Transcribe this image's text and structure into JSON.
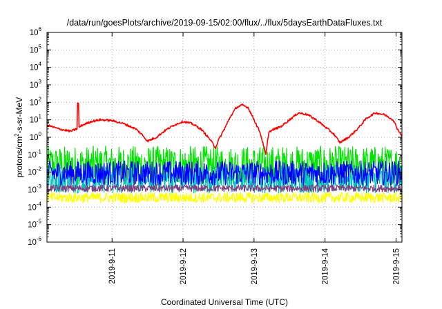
{
  "chart_data": {
    "type": "line",
    "title": "/data/run/goesPlots/archive/2019-09-15/02:00/flux/../flux/5daysEarthDataFluxes.txt",
    "xlabel": "Coordinated Universal Time (UTC)",
    "ylabel": {
      "before": "protons/cm",
      "sup": "2",
      "after": "-s-sr-MeV"
    },
    "y_scale": "log",
    "ylim": [
      1e-06,
      1000000.0
    ],
    "y_ticks": [
      {
        "base": "10",
        "exp": "-6",
        "value": 1e-06
      },
      {
        "base": "10",
        "exp": "-5",
        "value": 1e-05
      },
      {
        "base": "10",
        "exp": "-4",
        "value": 0.0001
      },
      {
        "base": "10",
        "exp": "-3",
        "value": 0.001
      },
      {
        "base": "10",
        "exp": "-2",
        "value": 0.01
      },
      {
        "base": "10",
        "exp": "-1",
        "value": 0.1
      },
      {
        "base": "10",
        "exp": "0",
        "value": 1
      },
      {
        "base": "10",
        "exp": "1",
        "value": 10
      },
      {
        "base": "10",
        "exp": "2",
        "value": 100
      },
      {
        "base": "10",
        "exp": "3",
        "value": 1000
      },
      {
        "base": "10",
        "exp": "4",
        "value": 10000
      },
      {
        "base": "10",
        "exp": "5",
        "value": 100000
      },
      {
        "base": "10",
        "exp": "6",
        "value": 1000000
      }
    ],
    "xlim": [
      "2019-09-10T02:00",
      "2019-09-15T02:00"
    ],
    "x_ticks": [
      {
        "label": "2019-9-11",
        "value": "2019-09-11T00:00"
      },
      {
        "label": "2019-9-12",
        "value": "2019-09-12T00:00"
      },
      {
        "label": "2019-9-13",
        "value": "2019-09-13T00:00"
      },
      {
        "label": "2019-9-14",
        "value": "2019-09-14T00:00"
      },
      {
        "label": "2019-9-15",
        "value": "2019-09-15T00:00"
      }
    ],
    "grid": true,
    "series": [
      {
        "color": "#ff0000",
        "style": "smooth",
        "noise": 0.06,
        "spikes": [
          [
            "2019-09-10T12:30",
            90
          ]
        ],
        "points": [
          [
            "2019-09-10T02:00",
            5
          ],
          [
            "2019-09-10T06:00",
            3
          ],
          [
            "2019-09-10T10:00",
            2.2
          ],
          [
            "2019-09-10T12:00",
            3
          ],
          [
            "2019-09-10T14:00",
            5
          ],
          [
            "2019-09-10T17:00",
            8
          ],
          [
            "2019-09-10T20:00",
            10
          ],
          [
            "2019-09-11T00:00",
            9
          ],
          [
            "2019-09-11T04:00",
            6
          ],
          [
            "2019-09-11T08:00",
            3
          ],
          [
            "2019-09-11T10:00",
            1.5
          ],
          [
            "2019-09-11T12:00",
            0.6
          ],
          [
            "2019-09-11T15:00",
            1
          ],
          [
            "2019-09-11T18:00",
            2.5
          ],
          [
            "2019-09-11T21:00",
            5
          ],
          [
            "2019-09-12T00:00",
            8
          ],
          [
            "2019-09-12T03:00",
            6
          ],
          [
            "2019-09-12T06:00",
            3
          ],
          [
            "2019-09-12T09:00",
            0.8
          ],
          [
            "2019-09-12T11:00",
            0.25
          ],
          [
            "2019-09-12T12:00",
            0.7
          ],
          [
            "2019-09-12T14:00",
            3
          ],
          [
            "2019-09-12T16:00",
            15
          ],
          [
            "2019-09-12T18:00",
            50
          ],
          [
            "2019-09-12T20:00",
            70
          ],
          [
            "2019-09-12T22:00",
            50
          ],
          [
            "2019-09-13T00:00",
            10
          ],
          [
            "2019-09-13T02:00",
            2
          ],
          [
            "2019-09-13T04:00",
            0.1
          ],
          [
            "2019-09-13T05:00",
            2
          ],
          [
            "2019-09-13T07:00",
            3
          ],
          [
            "2019-09-13T09:00",
            4
          ],
          [
            "2019-09-13T12:00",
            10
          ],
          [
            "2019-09-13T15:00",
            25
          ],
          [
            "2019-09-13T18:00",
            20
          ],
          [
            "2019-09-13T21:00",
            10
          ],
          [
            "2019-09-14T00:00",
            4
          ],
          [
            "2019-09-14T03:00",
            1.5
          ],
          [
            "2019-09-14T05:00",
            0.5
          ],
          [
            "2019-09-14T08:00",
            1
          ],
          [
            "2019-09-14T11:00",
            3
          ],
          [
            "2019-09-14T14:00",
            12
          ],
          [
            "2019-09-14T17:00",
            25
          ],
          [
            "2019-09-14T20:00",
            20
          ],
          [
            "2019-09-14T23:00",
            10
          ],
          [
            "2019-09-15T00:30",
            3
          ],
          [
            "2019-09-15T02:00",
            1.2
          ]
        ]
      },
      {
        "color": "#00e400",
        "style": "noisy",
        "level": 0.025,
        "spread": 2.2
      },
      {
        "color": "#00bfbf",
        "style": "noisy",
        "level": 0.004,
        "spread": 1.6
      },
      {
        "color": "#0000ff",
        "style": "noisy",
        "level": 0.009,
        "spread": 1.4
      },
      {
        "color": "#7f3f7f",
        "style": "noisy",
        "level": 0.0012,
        "spread": 0.4
      },
      {
        "color": "#ffff00",
        "style": "noisy",
        "level": 0.00035,
        "spread": 0.6
      }
    ]
  }
}
